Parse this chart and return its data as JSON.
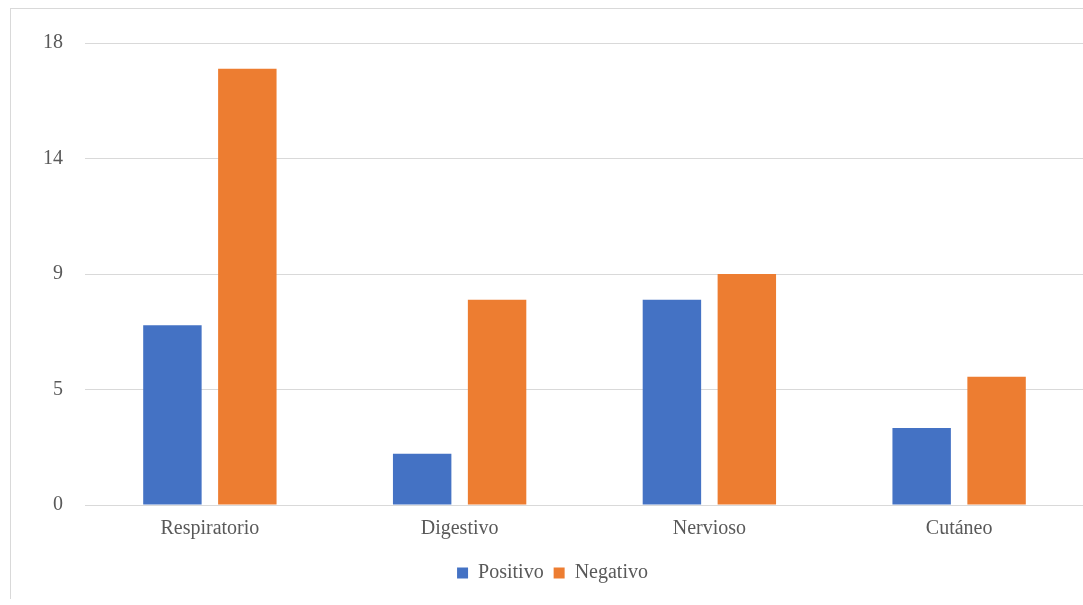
{
  "chart_data": {
    "type": "bar",
    "categories": [
      "Respiratorio",
      "Digestivo",
      "Nervioso",
      "Cutáneo"
    ],
    "series": [
      {
        "name": "Positivo",
        "color": "#4472c4",
        "values": [
          7,
          2,
          8,
          3
        ]
      },
      {
        "name": "Negativo",
        "color": "#ed7d31",
        "values": [
          17,
          8,
          9,
          5
        ]
      }
    ],
    "ylim": [
      0,
      18
    ],
    "yticks": [
      0,
      {
        "value": 4.5,
        "label": "5"
      },
      9,
      {
        "value": 13.5,
        "label": "14"
      },
      18
    ],
    "grid": "y",
    "legend": "bottom"
  }
}
